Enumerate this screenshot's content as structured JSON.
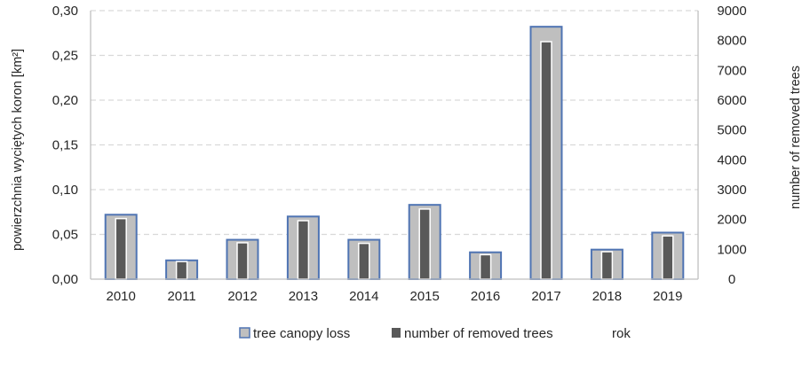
{
  "chart_data": {
    "type": "bar",
    "categories": [
      "2010",
      "2011",
      "2012",
      "2013",
      "2014",
      "2015",
      "2016",
      "2017",
      "2018",
      "2019"
    ],
    "series": [
      {
        "name": "tree canopy loss",
        "axis": "left",
        "values": [
          0.072,
          0.021,
          0.044,
          0.07,
          0.044,
          0.083,
          0.03,
          0.282,
          0.033,
          0.052
        ],
        "fill": "#bfbfbf",
        "stroke": "#4f74b3"
      },
      {
        "name": "number of removed trees",
        "axis": "right",
        "values": [
          2030,
          590,
          1220,
          1960,
          1200,
          2350,
          820,
          7960,
          920,
          1450
        ],
        "fill": "#595959",
        "stroke": "#ffffff"
      }
    ],
    "y_left": {
      "label": "powierzchnia wyciętych koron [km²]",
      "ylim": [
        0,
        0.3
      ],
      "ticks": [
        "0,00",
        "0,05",
        "0,10",
        "0,15",
        "0,20",
        "0,25",
        "0,30"
      ]
    },
    "y_right": {
      "label": "number of removed trees",
      "ylim": [
        0,
        9000
      ],
      "ticks": [
        "0",
        "1000",
        "2000",
        "3000",
        "4000",
        "5000",
        "6000",
        "7000",
        "8000",
        "9000"
      ]
    },
    "xlabel": "rok",
    "grid": "horizontal dashed",
    "legend_position": "bottom",
    "colors": {
      "grid": "#d9d9d9",
      "axis": "#bfbfbf"
    }
  }
}
